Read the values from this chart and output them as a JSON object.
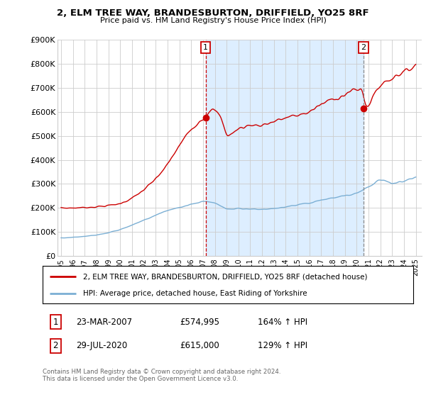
{
  "title": "2, ELM TREE WAY, BRANDESBURTON, DRIFFIELD, YO25 8RF",
  "subtitle": "Price paid vs. HM Land Registry's House Price Index (HPI)",
  "legend_line1": "2, ELM TREE WAY, BRANDESBURTON, DRIFFIELD, YO25 8RF (detached house)",
  "legend_line2": "HPI: Average price, detached house, East Riding of Yorkshire",
  "footer": "Contains HM Land Registry data © Crown copyright and database right 2024.\nThis data is licensed under the Open Government Licence v3.0.",
  "sale1_date": "23-MAR-2007",
  "sale1_price": "£574,995",
  "sale1_hpi": "164% ↑ HPI",
  "sale2_date": "29-JUL-2020",
  "sale2_price": "£615,000",
  "sale2_hpi": "129% ↑ HPI",
  "red_color": "#cc0000",
  "blue_color": "#7bafd4",
  "shade_color": "#ddeeff",
  "grid_color": "#cccccc",
  "background_color": "#ffffff",
  "marker_box_color": "#cc0000",
  "ylim": [
    0,
    900000
  ],
  "xlim_start": 1994.7,
  "xlim_end": 2025.5,
  "yticks": [
    0,
    100000,
    200000,
    300000,
    400000,
    500000,
    600000,
    700000,
    800000,
    900000
  ],
  "ytick_labels": [
    "£0",
    "£100K",
    "£200K",
    "£300K",
    "£400K",
    "£500K",
    "£600K",
    "£700K",
    "£800K",
    "£900K"
  ],
  "xticks": [
    1995,
    1996,
    1997,
    1998,
    1999,
    2000,
    2001,
    2002,
    2003,
    2004,
    2005,
    2006,
    2007,
    2008,
    2009,
    2010,
    2011,
    2012,
    2013,
    2014,
    2015,
    2016,
    2017,
    2018,
    2019,
    2020,
    2021,
    2022,
    2023,
    2024,
    2025
  ],
  "sale1_x": 2007.22,
  "sale1_y": 574995,
  "sale2_x": 2020.58,
  "sale2_y": 615000,
  "blue_key_years": [
    1995,
    1996,
    1997,
    1998,
    1999,
    2000,
    2001,
    2002,
    2003,
    2004,
    2005,
    2006,
    2007,
    2008,
    2009,
    2010,
    2011,
    2012,
    2013,
    2014,
    2015,
    2016,
    2017,
    2018,
    2019,
    2020,
    2021,
    2022,
    2023,
    2024,
    2025
  ],
  "blue_key_prices": [
    75000,
    78000,
    82000,
    88000,
    97000,
    110000,
    128000,
    150000,
    170000,
    190000,
    202000,
    215000,
    228000,
    222000,
    195000,
    198000,
    196000,
    193000,
    197000,
    204000,
    212000,
    220000,
    232000,
    242000,
    250000,
    262000,
    288000,
    320000,
    302000,
    312000,
    330000
  ],
  "red_key_years": [
    1995,
    1996,
    1997,
    1998,
    1999,
    2000,
    2001,
    2002,
    2003,
    2004,
    2005,
    2006,
    2007,
    2007.22,
    2007.5,
    2008,
    2008.5,
    2009,
    2009.5,
    2010,
    2011,
    2012,
    2012.5,
    2013,
    2014,
    2015,
    2016,
    2017,
    2018,
    2019,
    2019.5,
    2020,
    2020.5,
    2020.58,
    2021,
    2021.5,
    2022,
    2022.5,
    2023,
    2023.5,
    2024,
    2024.5,
    2025
  ],
  "red_key_prices": [
    200000,
    200000,
    202000,
    205000,
    210000,
    218000,
    240000,
    275000,
    320000,
    380000,
    460000,
    530000,
    575000,
    574995,
    610000,
    605000,
    580000,
    500000,
    510000,
    530000,
    545000,
    545000,
    552000,
    560000,
    575000,
    585000,
    600000,
    630000,
    655000,
    670000,
    685000,
    690000,
    700000,
    650000,
    615000,
    680000,
    710000,
    730000,
    740000,
    760000,
    760000,
    780000,
    800000
  ]
}
